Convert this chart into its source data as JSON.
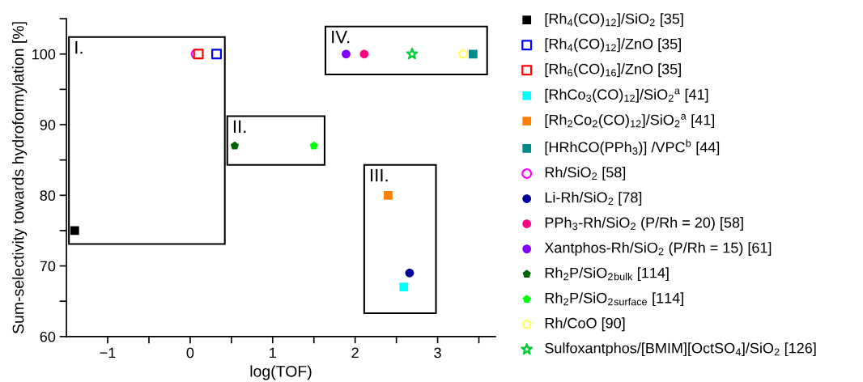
{
  "chart_data": {
    "type": "scatter",
    "xlabel": "log(TOF)",
    "ylabel": "Sum-selectivity towards hydroformylation [%]",
    "xlim": [
      -1.5,
      3.7
    ],
    "ylim": [
      60,
      105
    ],
    "xticks": [
      -1,
      0,
      1,
      2,
      3,
      {
        "value": -0.5,
        "label": null
      },
      {
        "value": 0.5,
        "label": null
      },
      {
        "value": 1.5,
        "label": null
      },
      {
        "value": 2.5,
        "label": null
      },
      {
        "value": 3.5,
        "label": null
      }
    ],
    "yticks": [
      60,
      70,
      80,
      90,
      100,
      {
        "value": 65,
        "label": null
      },
      {
        "value": 75,
        "label": null
      },
      {
        "value": 85,
        "label": null
      },
      {
        "value": 95,
        "label": null
      },
      {
        "value": 105,
        "label": null
      }
    ],
    "grid": false,
    "legend": "right",
    "annotations": [
      "I.",
      "II.",
      "III.",
      "IV."
    ],
    "series": [
      {
        "name": "[Rh$_{4}$(CO)$_{12}$]/SiO$_{2}$ [35]",
        "color": "#000000",
        "marker": "square",
        "x": [
          -1.4
        ],
        "values": [
          75
        ]
      },
      {
        "name": "[Rh$_{4}$(CO)$_{12}$]/ZnO [35]",
        "color": "#0000ff",
        "marker": "square",
        "x": [
          0.32
        ],
        "values": [
          100
        ]
      },
      {
        "name": "[Rh$_{6}$(CO)$_{16}$]/ZnO [35]",
        "color": "#ff0000",
        "marker": "square",
        "x": [
          0.1
        ],
        "values": [
          100
        ]
      },
      {
        "name": "[RhCo$_{3}$(CO)$_{12}$]/SiO$_{2}$$^{a}$ [41]",
        "color": "#00ffff",
        "marker": "square",
        "x": [
          2.59
        ],
        "values": [
          67
        ]
      },
      {
        "name": "[Rh$_{2}$Co$_{2}$(CO)$_{12}$]/SiO$_{2}$$^{a}$ [41]",
        "color": "#ff8000",
        "marker": "square",
        "x": [
          2.4
        ],
        "values": [
          80
        ]
      },
      {
        "name": "[HRhCO(PPh$_{3}$)] /VPC$^{b}$ [44]",
        "color": "#008b8b",
        "marker": "square",
        "x": [
          3.43
        ],
        "values": [
          100
        ]
      },
      {
        "name": "Rh/SiO$_{2}$ [58]",
        "color": "#ff00ff",
        "marker": "circle",
        "x": [
          0.07
        ],
        "values": [
          100
        ]
      },
      {
        "name": "Li-Rh/SiO$_{2}$ [78]",
        "color": "#000099",
        "marker": "circle",
        "x": [
          2.66
        ],
        "values": [
          69
        ]
      },
      {
        "name": "PPh$_{3}$-Rh/SiO$_{2}$ (P/Rh = 20) [58]",
        "color": "#ff0080",
        "marker": "circle",
        "x": [
          2.11
        ],
        "values": [
          100
        ]
      },
      {
        "name": "Xantphos-Rh/SiO$_{2}$ (P/Rh = 15) [61]",
        "color": "#8000ff",
        "marker": "circle",
        "x": [
          1.89
        ],
        "values": [
          100
        ]
      },
      {
        "name": "Rh$_{2}$P/SiO$_{2}$$_{bulk}$ [114]",
        "color": "#006400",
        "x": [
          0.54
        ],
        "values": [
          87
        ]
      },
      {
        "name": "Rh$_{2}$P/SiO$_{2}$$_{surface}$ [114]",
        "color": "#00ff00",
        "x": [
          1.5
        ],
        "values": [
          87
        ]
      },
      {
        "name": "Rh/CoO [90]",
        "color": "#ffff66",
        "x": [
          3.31
        ],
        "values": [
          100
        ]
      },
      {
        "name": "Sulfoxantphos/[BMIM][OctSO$_{4}$]/SiO$_{2}$ [126]",
        "color": "#00cc33",
        "marker": "star",
        "x": [
          2.69
        ],
        "values": [
          100
        ]
      }
    ]
  }
}
